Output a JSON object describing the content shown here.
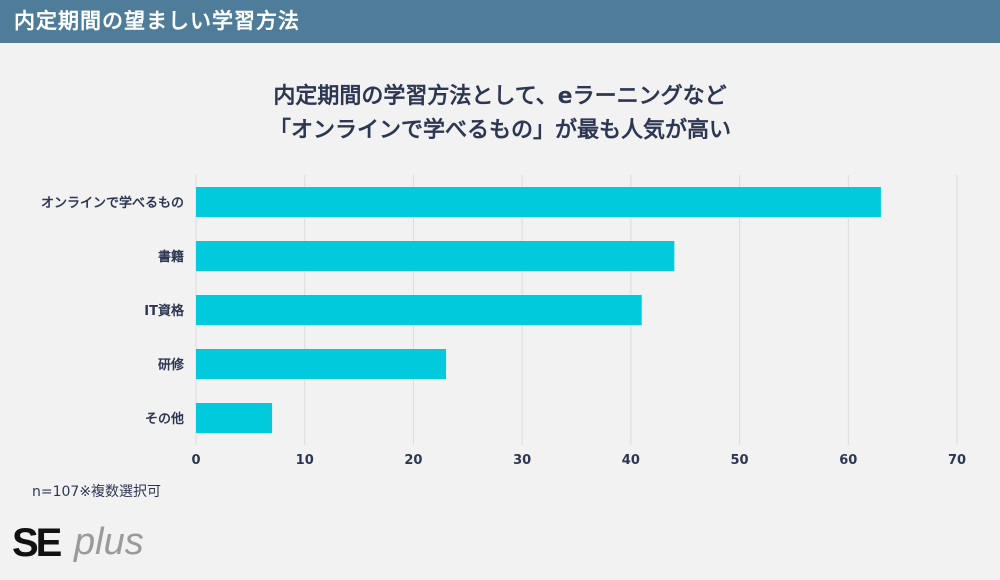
{
  "header": {
    "title": "内定期間の望ましい学習方法"
  },
  "chart_title": {
    "line1": "内定期間の学習方法として、eラーニングなど",
    "line2": "「オンラインで学べるもの」が最も人気が高い"
  },
  "chart_data": {
    "type": "bar",
    "orientation": "horizontal",
    "categories": [
      "オンラインで学べるもの",
      "書籍",
      "IT資格",
      "研修",
      "その他"
    ],
    "values": [
      63,
      44,
      41,
      23,
      7
    ],
    "xlim": [
      0,
      70
    ],
    "xticks": [
      "0",
      "10",
      "20",
      "30",
      "40",
      "50",
      "60",
      "70"
    ],
    "grid": "vertical",
    "bar_color": "#00cadb"
  },
  "note": "n=107※複数選択可",
  "logo": {
    "text_bold": "SE",
    "text_light": "plus"
  },
  "colors": {
    "header_bg": "#4f7d99",
    "text": "#2e3752",
    "background": "#f2f2f2"
  }
}
